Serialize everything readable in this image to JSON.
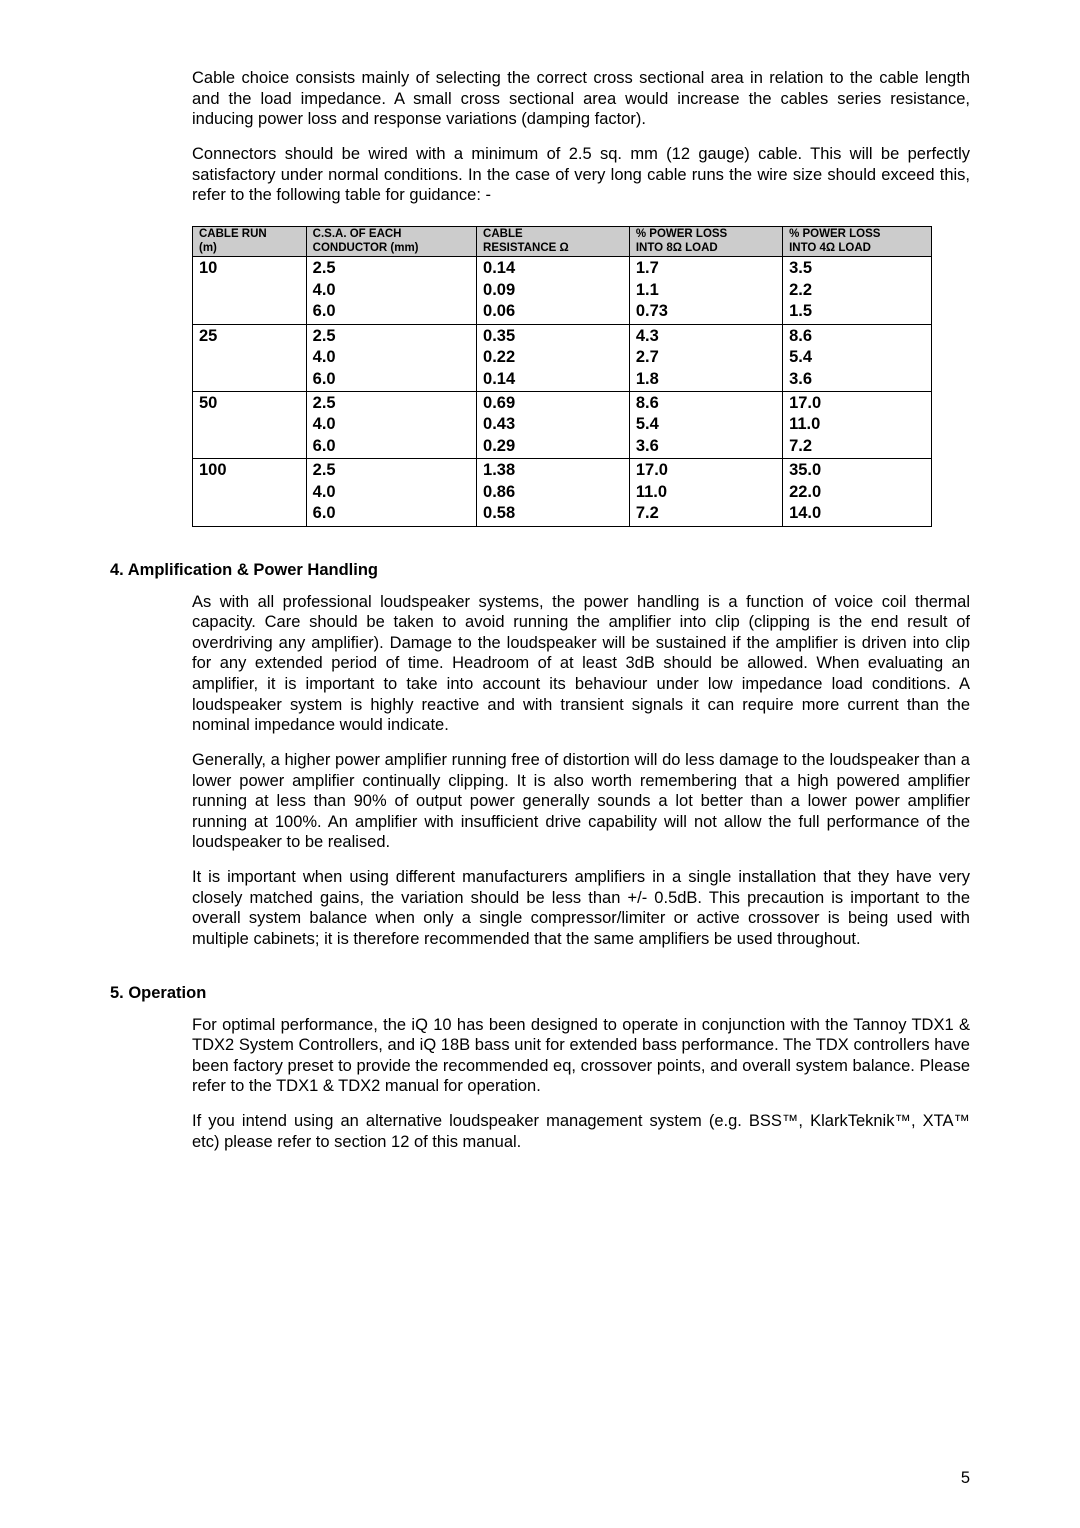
{
  "intro": {
    "p1": "Cable choice consists mainly of selecting the correct cross sectional area in relation to the cable length and the load impedance. A small cross sectional area would increase the cables series resistance, inducing power loss and response variations (damping factor).",
    "p2": "Connectors should be wired with a minimum of 2.5 sq. mm (12 gauge) cable. This will be perfectly satisfactory under normal conditions. In the case of very long cable runs the wire size should exceed this, refer to the following table for guidance: -"
  },
  "table": {
    "headers": {
      "run_l1": "CABLE RUN",
      "run_l2": "(m)",
      "csa_l1": "C.S.A. OF EACH",
      "csa_l2": "CONDUCTOR (mm)",
      "res_l1": "CABLE",
      "res_l2": "RESISTANCE Ω",
      "p8_l1": "% POWER LOSS",
      "p8_l2": "INTO 8Ω LOAD",
      "p4_l1": "% POWER LOSS",
      "p4_l2": "INTO 4Ω LOAD"
    },
    "groups": [
      {
        "run": "10",
        "csa": [
          "2.5",
          "4.0",
          "6.0"
        ],
        "res": [
          "0.14",
          "0.09",
          "0.06"
        ],
        "p8": [
          "1.7",
          "1.1",
          "0.73"
        ],
        "p4": [
          "3.5",
          "2.2",
          "1.5"
        ]
      },
      {
        "run": "25",
        "csa": [
          "2.5",
          "4.0",
          "6.0"
        ],
        "res": [
          "0.35",
          "0.22",
          "0.14"
        ],
        "p8": [
          "4.3",
          "2.7",
          "1.8"
        ],
        "p4": [
          "8.6",
          "5.4",
          "3.6"
        ]
      },
      {
        "run": "50",
        "csa": [
          "2.5",
          "4.0",
          "6.0"
        ],
        "res": [
          "0.69",
          "0.43",
          "0.29"
        ],
        "p8": [
          "8.6",
          "5.4",
          "3.6"
        ],
        "p4": [
          "17.0",
          "11.0",
          "7.2"
        ]
      },
      {
        "run": "100",
        "csa": [
          "2.5",
          "4.0",
          "6.0"
        ],
        "res": [
          "1.38",
          "0.86",
          "0.58"
        ],
        "p8": [
          "17.0",
          "11.0",
          "7.2"
        ],
        "p4": [
          "35.0",
          "22.0",
          "14.0"
        ]
      }
    ]
  },
  "sec4": {
    "title": "4. Amplification & Power Handling",
    "p1": "As with all professional loudspeaker systems, the power handling is a function of voice coil thermal capacity. Care should be taken to avoid running the amplifier into clip (clipping is the end result of overdriving any amplifier). Damage to the loudspeaker will be sustained if the amplifier is driven into clip for any extended period of time. Headroom of at least 3dB should be allowed. When evaluating an amplifier, it is important to take into account its behaviour under low impedance load conditions. A loudspeaker system is highly reactive and with transient signals it can require more current than the nominal impedance would indicate.",
    "p2": "Generally, a higher power amplifier running free of distortion will do less damage to the loudspeaker than a lower power amplifier continually clipping. It is also worth remembering that a high powered amplifier running at less than 90% of output power generally sounds a lot better than a lower power amplifier running at 100%. An amplifier with insufficient drive capability will not allow the full performance of the loudspeaker to be realised.",
    "p3": "It is important when using different manufacturers amplifiers in a single installation that they have very closely matched gains, the variation should be less than +/- 0.5dB. This precaution is important to the overall system balance when only a single compressor/limiter or active crossover is being used with multiple cabinets; it is therefore recommended that the same amplifiers be used throughout."
  },
  "sec5": {
    "title": "5. Operation",
    "p1": "For optimal performance, the iQ 10 has been designed to operate in conjunction with the Tannoy TDX1 & TDX2 System Controllers, and iQ 18B bass unit for extended bass performance. The TDX controllers have been factory preset to provide the recommended eq, crossover points, and overall system balance. Please refer to the TDX1 & TDX2 manual for operation.",
    "p2": "If you intend using an alternative loudspeaker management system (e.g. BSS™, KlarkTeknik™, XTA™ etc) please refer to section 12 of this manual."
  },
  "pageNumber": "5"
}
